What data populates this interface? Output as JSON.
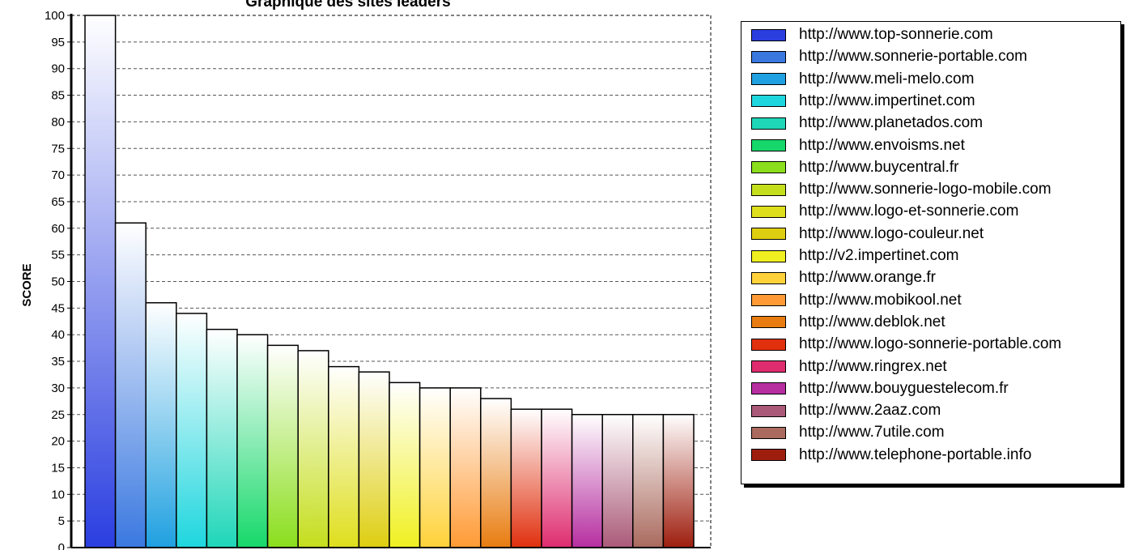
{
  "chart_data": {
    "type": "bar",
    "title": "Graphique des sites leaders",
    "ylabel": "SCORE",
    "xlabel": "",
    "ylim": [
      0,
      100
    ],
    "yticks": [
      0,
      5,
      10,
      15,
      20,
      25,
      30,
      35,
      40,
      45,
      50,
      55,
      60,
      65,
      70,
      75,
      80,
      85,
      90,
      95,
      100
    ],
    "grid": true,
    "legend_position": "right",
    "categories": [
      "http://www.top-sonnerie.com",
      "http://www.sonnerie-portable.com",
      "http://www.meli-melo.com",
      "http://www.impertinet.com",
      "http://www.planetados.com",
      "http://www.envoisms.net",
      "http://www.buycentral.fr",
      "http://www.sonnerie-logo-mobile.com",
      "http://www.logo-et-sonnerie.com",
      "http://www.logo-couleur.net",
      "http://v2.impertinet.com",
      "http://www.orange.fr",
      "http://www.mobikool.net",
      "http://www.deblok.net",
      "http://www.logo-sonnerie-portable.com",
      "http://www.ringrex.net",
      "http://www.bouyguestelecom.fr",
      "http://www.2aaz.com",
      "http://www.7utile.com",
      "http://www.telephone-portable.info"
    ],
    "values": [
      100,
      61,
      46,
      44,
      41,
      40,
      38,
      37,
      34,
      33,
      31,
      30,
      30,
      28,
      26,
      26,
      25,
      25,
      25,
      25
    ],
    "colors": [
      "#2a3ee0",
      "#3a78e0",
      "#1fa0e0",
      "#1ed6de",
      "#1ed6b8",
      "#16d86a",
      "#8ade1c",
      "#c4de1c",
      "#dede1c",
      "#dece10",
      "#f0f020",
      "#ffd23a",
      "#ff9a34",
      "#e87c10",
      "#e0300e",
      "#de2c6e",
      "#b62ea0",
      "#aa5a78",
      "#aa6a5e",
      "#9e1e0e"
    ]
  }
}
